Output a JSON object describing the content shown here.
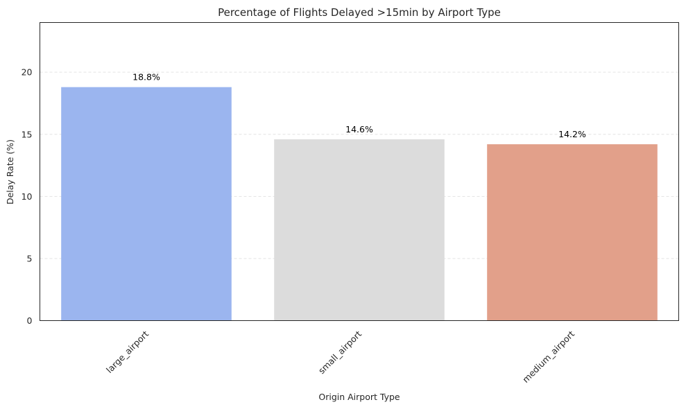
{
  "chart_data": {
    "type": "bar",
    "title": "Percentage of Flights Delayed >15min by Airport Type",
    "xlabel": "Origin Airport Type",
    "ylabel": "Delay Rate (%)",
    "categories": [
      "large_airport",
      "small_airport",
      "medium_airport"
    ],
    "values": [
      18.8,
      14.6,
      14.2
    ],
    "data_labels": [
      "18.8%",
      "14.6%",
      "14.2%"
    ],
    "colors": [
      "#9bb5ef",
      "#dcdcdc",
      "#e2a08a"
    ],
    "ylim": [
      0,
      24
    ],
    "yticks": [
      0,
      5,
      10,
      15,
      20
    ],
    "ytick_labels": [
      "0",
      "5",
      "10",
      "15",
      "20"
    ],
    "grid": "y-dashed",
    "xtick_rotation": 45
  }
}
